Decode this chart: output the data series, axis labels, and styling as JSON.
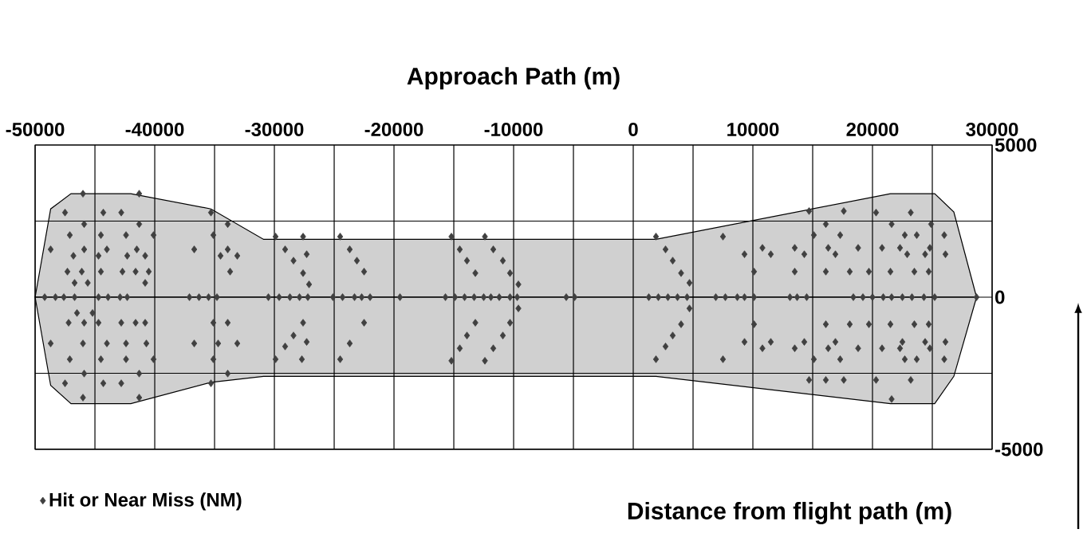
{
  "chart_data": {
    "type": "scatter",
    "xlabel": "Approach Path (m)",
    "annotations": [
      "Distance from flight path (m)"
    ],
    "xlim": [
      -50000,
      30000
    ],
    "ylim": [
      -5000,
      5000
    ],
    "xticks": [
      -50000,
      {
        "value": -45000,
        "label": null
      },
      -40000,
      {
        "value": -35000,
        "label": null
      },
      -30000,
      {
        "value": -25000,
        "label": null
      },
      -20000,
      {
        "value": -15000,
        "label": null
      },
      -10000,
      {
        "value": -5000,
        "label": null
      },
      0,
      {
        "value": 5000,
        "label": null
      },
      10000,
      {
        "value": 15000,
        "label": null
      },
      20000,
      {
        "value": 25000,
        "label": null
      },
      30000
    ],
    "yticks": [
      -5000,
      {
        "value": -2500,
        "label": null
      },
      0,
      {
        "value": 2500,
        "label": null
      },
      5000
    ],
    "grid": true,
    "legend": "bottom left",
    "series": [
      {
        "type": "area",
        "color": "#d0d0d0",
        "x": [
          -50000,
          -48700,
          -47000,
          -42000,
          -35300,
          -30900,
          1900,
          21500,
          25200,
          26800,
          28700
        ],
        "values": [
          0,
          2900,
          3400,
          3400,
          2900,
          1900,
          1900,
          3400,
          3400,
          2800,
          0
        ]
      },
      {
        "type": "area",
        "color": "#d0d0d0",
        "x": [
          -50000,
          -48700,
          -47000,
          -42000,
          -35300,
          -30900,
          1900,
          21500,
          25200,
          26800,
          28700
        ],
        "values": [
          0,
          -2900,
          -3500,
          -3500,
          -2800,
          -2600,
          -2600,
          -3500,
          -3500,
          -2600,
          0
        ]
      },
      {
        "name": "Hit or Near Miss (NM)",
        "color": "#404040",
        "marker": "diamond",
        "x": [
          -46000,
          -41300,
          -47500,
          -44300,
          -42800,
          -35300,
          -45900,
          -41300,
          -33900,
          -47100,
          -44500,
          -42400,
          -40100,
          -35100,
          -48700,
          -45900,
          -44000,
          -41500,
          -36700,
          -33900,
          -46800,
          -44700,
          -42300,
          -40800,
          -34500,
          -33100,
          -47300,
          -46100,
          -44500,
          -42700,
          -41600,
          -40500,
          -33700,
          -46700,
          -45600,
          -40800,
          -29100,
          -27300,
          -28400,
          -27600,
          -27100,
          -29900,
          -27600,
          -24500,
          -23700,
          -23100,
          -22500,
          -49200,
          -48300,
          -47600,
          -46700,
          -44700,
          -43900,
          -42900,
          -42300,
          -37100,
          -36300,
          -35500,
          -34800,
          -30500,
          -29600,
          -28700,
          -27900,
          -27200,
          -25100,
          -24300,
          -23300,
          -22700,
          -22000,
          -46500,
          -45200,
          -47200,
          -45900,
          -44700,
          -42800,
          -41600,
          -40800,
          -33900,
          -35100,
          -48700,
          -46000,
          -44000,
          -42400,
          -40700,
          -36700,
          -34700,
          -33100,
          -47100,
          -44500,
          -42400,
          -40100,
          -35100,
          -29900,
          -27700,
          -24500,
          -45900,
          -41300,
          -33900,
          -47500,
          -44300,
          -42800,
          -35300,
          -46000,
          -41300,
          -29100,
          -27300,
          -28400,
          -27600,
          -23700,
          -22500,
          -15200,
          -12400,
          -14500,
          -11700,
          -13900,
          -10900,
          -13200,
          -10300,
          -9600,
          -19500,
          -15700,
          -14900,
          -14100,
          -13300,
          -12500,
          -11900,
          -11200,
          -10300,
          -9700,
          -5600,
          -4900,
          1300,
          2100,
          2900,
          3700,
          4500,
          -13200,
          -10300,
          -13900,
          -10900,
          -14500,
          -11700,
          -15200,
          -12400,
          -9600,
          1900,
          2700,
          3300,
          4000,
          4700,
          4700,
          4000,
          3300,
          2700,
          1900,
          14700,
          17600,
          20300,
          23200,
          21600,
          24900,
          16100,
          7500,
          15100,
          17300,
          22700,
          23700,
          26000,
          10800,
          13500,
          16300,
          18800,
          20800,
          22300,
          24800,
          9300,
          11500,
          14300,
          16900,
          22900,
          24400,
          26100,
          10100,
          13500,
          16100,
          18100,
          19700,
          21500,
          23500,
          24700,
          6900,
          7700,
          8700,
          9300,
          10100,
          13100,
          13700,
          14500,
          18400,
          19200,
          20000,
          20900,
          21600,
          22500,
          23300,
          24300,
          25200,
          28700,
          10100,
          16100,
          18100,
          19700,
          21500,
          23500,
          24700,
          9300,
          11500,
          14300,
          16900,
          22500,
          24400,
          26100,
          10800,
          13500,
          16300,
          18800,
          20800,
          22300,
          24800,
          7500,
          15100,
          17300,
          22700,
          23700,
          26000,
          14700,
          17600,
          20300,
          23200,
          16100,
          21600
        ],
        "values": [
          3400,
          3400,
          2780,
          2780,
          2780,
          2780,
          2400,
          2400,
          2400,
          2040,
          2040,
          2040,
          2040,
          2040,
          1570,
          1570,
          1570,
          1570,
          1570,
          1570,
          1360,
          1360,
          1360,
          1360,
          1360,
          1360,
          840,
          840,
          840,
          840,
          840,
          840,
          840,
          470,
          470,
          470,
          1570,
          1410,
          1200,
          790,
          420,
          1990,
          1990,
          1990,
          1570,
          1200,
          840,
          0,
          0,
          0,
          0,
          0,
          0,
          0,
          0,
          0,
          0,
          0,
          0,
          0,
          0,
          0,
          0,
          0,
          0,
          0,
          0,
          0,
          0,
          -520,
          -520,
          -840,
          -840,
          -840,
          -840,
          -840,
          -840,
          -840,
          -840,
          -1520,
          -1520,
          -1520,
          -1520,
          -1520,
          -1520,
          -1520,
          -1520,
          -2040,
          -2040,
          -2040,
          -2040,
          -2040,
          -2040,
          -2040,
          -2040,
          -2510,
          -2510,
          -2510,
          -2830,
          -2830,
          -2830,
          -2830,
          -3300,
          -3300,
          -1620,
          -1470,
          -1260,
          -840,
          -1520,
          -840,
          1990,
          1990,
          1570,
          1570,
          1200,
          1200,
          790,
          790,
          420,
          0,
          0,
          0,
          0,
          0,
          0,
          0,
          0,
          0,
          0,
          0,
          0,
          0,
          0,
          0,
          0,
          0,
          -840,
          -840,
          -1260,
          -1260,
          -1680,
          -1680,
          -2090,
          -2090,
          -370,
          1990,
          1570,
          1200,
          790,
          470,
          -370,
          -890,
          -1260,
          -1620,
          -2040,
          2830,
          2830,
          2780,
          2780,
          2400,
          2400,
          2400,
          1990,
          2040,
          2040,
          2040,
          2040,
          2040,
          1620,
          1620,
          1620,
          1620,
          1620,
          1620,
          1620,
          1410,
          1410,
          1410,
          1410,
          1410,
          1410,
          1410,
          840,
          840,
          840,
          840,
          840,
          840,
          840,
          840,
          0,
          0,
          0,
          0,
          0,
          0,
          0,
          0,
          0,
          0,
          0,
          0,
          0,
          0,
          0,
          0,
          0,
          0,
          -890,
          -890,
          -890,
          -890,
          -890,
          -890,
          -890,
          -1470,
          -1470,
          -1470,
          -1470,
          -1470,
          -1470,
          -1470,
          -1680,
          -1680,
          -1680,
          -1680,
          -1680,
          -1680,
          -1680,
          -2040,
          -2040,
          -2040,
          -2040,
          -2040,
          -2040,
          -2720,
          -2720,
          -2720,
          -2720,
          -2720,
          -3350
        ]
      }
    ]
  }
}
